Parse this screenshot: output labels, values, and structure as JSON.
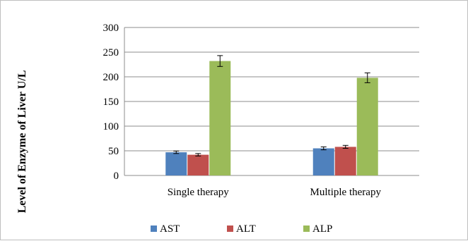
{
  "chart_data": {
    "type": "bar",
    "title": "",
    "xlabel": "",
    "ylabel": "Level of Enzyme of Liver  U/L",
    "ylim": [
      0,
      300
    ],
    "yticks": [
      0,
      50,
      100,
      150,
      200,
      250,
      300
    ],
    "grid": true,
    "legend_position": "bottom",
    "categories": [
      "Single therapy",
      "Multiple therapy"
    ],
    "series": [
      {
        "name": "AST",
        "color": "#4f81bd",
        "values": [
          47,
          55
        ],
        "errors": [
          2.5,
          3
        ]
      },
      {
        "name": "ALT",
        "color": "#c0504d",
        "values": [
          42,
          58
        ],
        "errors": [
          2.5,
          3
        ]
      },
      {
        "name": "ALP",
        "color": "#9bbb59",
        "values": [
          232,
          198
        ],
        "errors": [
          11,
          10
        ]
      }
    ]
  }
}
